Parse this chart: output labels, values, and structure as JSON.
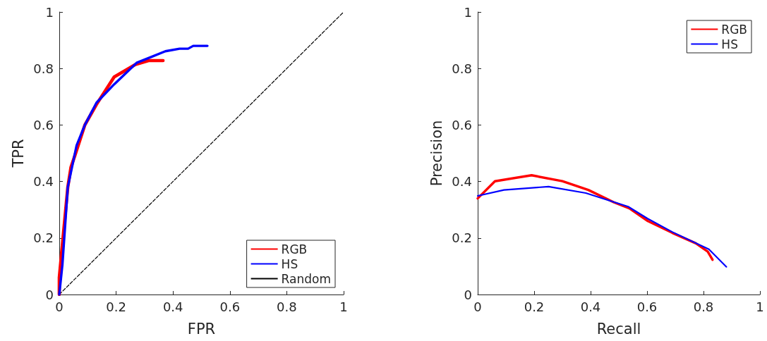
{
  "chart_data": [
    {
      "type": "line",
      "xlabel": "FPR",
      "ylabel": "TPR",
      "xlim": [
        0,
        1
      ],
      "ylim": [
        0,
        1
      ],
      "xticks": [
        0,
        0.2,
        0.4,
        0.6,
        0.8,
        1
      ],
      "yticks": [
        0,
        0.2,
        0.4,
        0.6,
        0.8,
        1
      ],
      "legend": "bottom right",
      "marker": "none",
      "series": [
        {
          "name": "RGB",
          "color": "#ff0000",
          "x": [
            0,
            0,
            0.022,
            0.03,
            0.041,
            0.056,
            0.09,
            0.131,
            0.193,
            0.268,
            0.314,
            0.365
          ],
          "values": [
            0,
            0.06,
            0.295,
            0.38,
            0.45,
            0.495,
            0.6,
            0.673,
            0.77,
            0.814,
            0.828,
            0.828
          ]
        },
        {
          "name": "HS",
          "color": "#0000ff",
          "x": [
            0,
            0.011,
            0.03,
            0.061,
            0.09,
            0.131,
            0.193,
            0.272,
            0.314,
            0.373,
            0.423,
            0.453,
            0.471,
            0.521
          ],
          "values": [
            0,
            0.105,
            0.38,
            0.528,
            0.6,
            0.679,
            0.744,
            0.82,
            0.837,
            0.861,
            0.87,
            0.87,
            0.88,
            0.88
          ]
        },
        {
          "name": "Random",
          "color": "#000000",
          "line_style": "dashed",
          "x": [
            0,
            1
          ],
          "values": [
            0,
            1
          ]
        }
      ]
    },
    {
      "type": "line",
      "xlabel": "Recall",
      "ylabel": "Precision",
      "xlim": [
        0,
        1
      ],
      "ylim": [
        0,
        1
      ],
      "xticks": [
        0,
        0.2,
        0.4,
        0.6,
        0.8,
        1
      ],
      "yticks": [
        0,
        0.2,
        0.4,
        0.6,
        0.8,
        1
      ],
      "legend": "top right",
      "marker": "none",
      "series": [
        {
          "name": "RGB",
          "color": "#ff0000",
          "x": [
            0,
            0.061,
            0.191,
            0.3,
            0.392,
            0.483,
            0.537,
            0.603,
            0.69,
            0.773,
            0.815,
            0.832
          ],
          "values": [
            0.34,
            0.401,
            0.422,
            0.401,
            0.37,
            0.326,
            0.305,
            0.26,
            0.218,
            0.181,
            0.152,
            0.123
          ]
        },
        {
          "name": "HS",
          "color": "#0000ff",
          "x": [
            0,
            0.093,
            0.251,
            0.383,
            0.533,
            0.603,
            0.69,
            0.819,
            0.881
          ],
          "values": [
            0.349,
            0.37,
            0.382,
            0.359,
            0.311,
            0.268,
            0.221,
            0.16,
            0.098
          ]
        }
      ]
    }
  ]
}
